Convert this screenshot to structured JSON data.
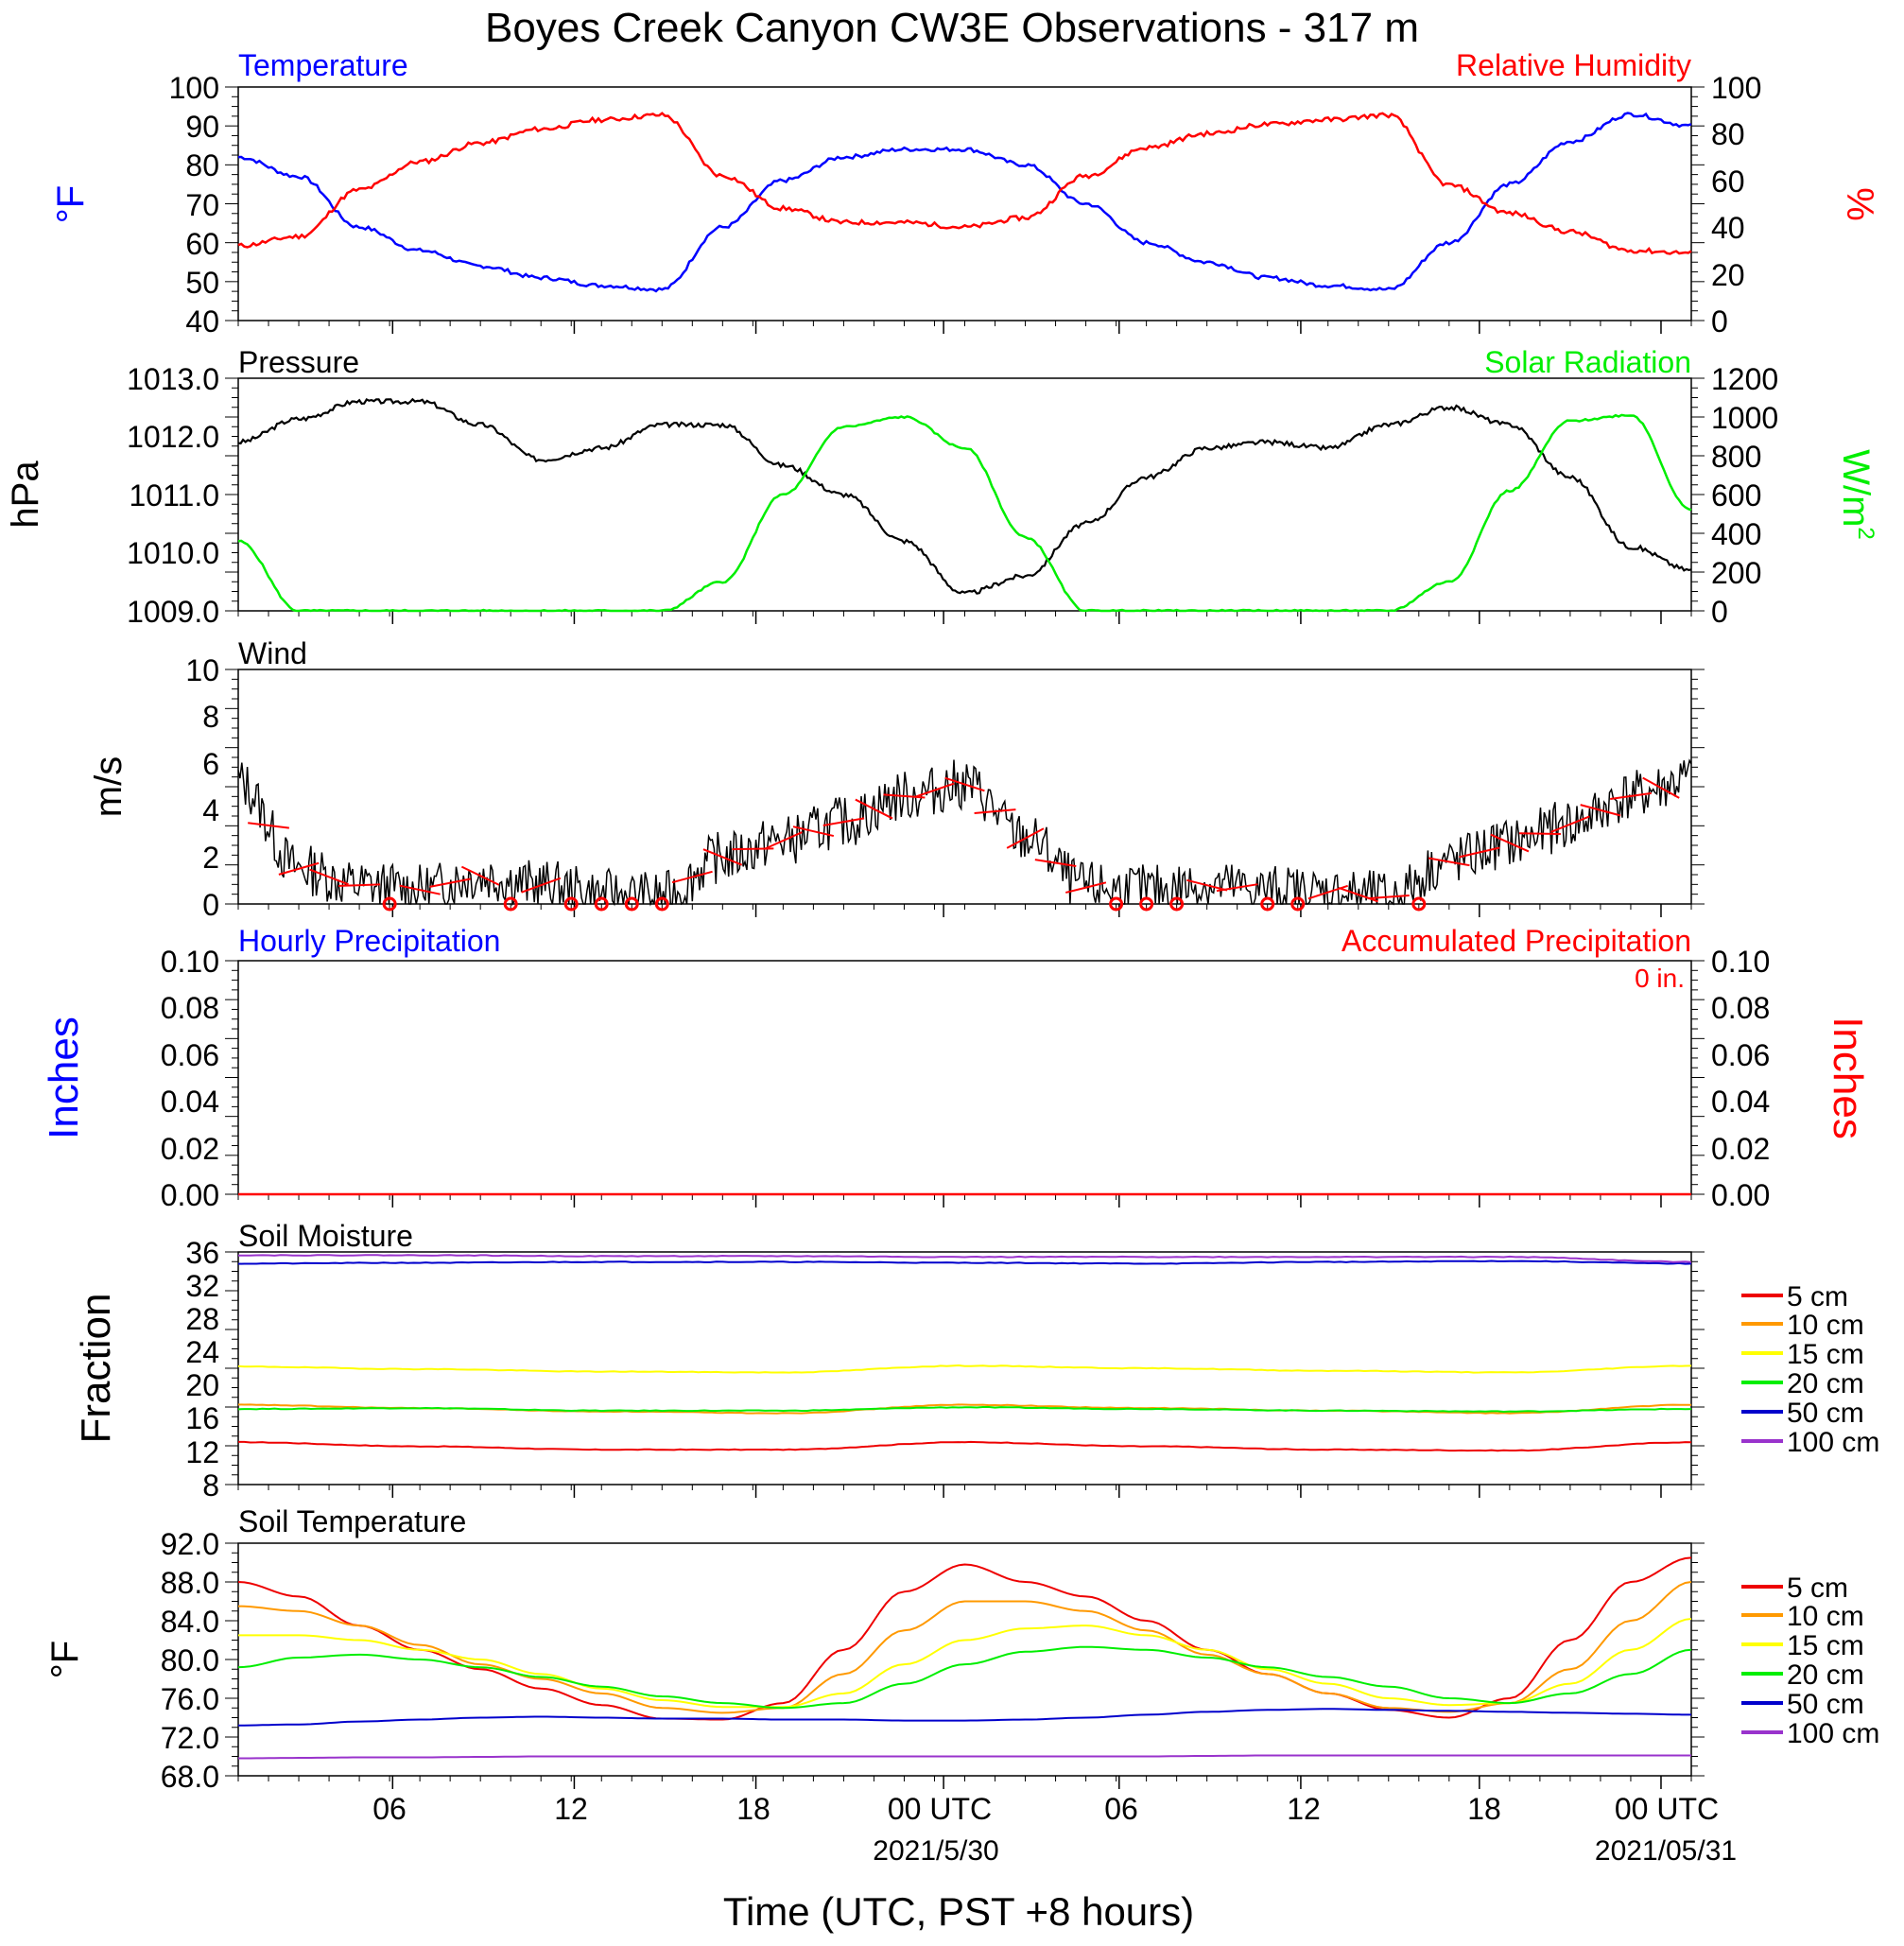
{
  "title": "Boyes Creek Canyon CW3E Observations - 317 m",
  "x_axis": {
    "title": "Time (UTC, PST +8 hours)",
    "tick_labels": [
      "06",
      "12",
      "18",
      "00 UTC",
      "06",
      "12",
      "18",
      "00 UTC"
    ],
    "date_labels": [
      "2021/5/30",
      "2021/05/31"
    ]
  },
  "legend_labels": [
    "5 cm",
    "10 cm",
    "15 cm",
    "20 cm",
    "50 cm",
    "100 cm"
  ],
  "colors": {
    "temperature": "#0000ff",
    "humidity": "#ff0000",
    "pressure": "#000000",
    "solar": "#00ee00",
    "wind": "#000000",
    "barb": "#ff0000",
    "depth_5cm": "#ee0000",
    "depth_10cm": "#ff9900",
    "depth_15cm": "#ffff00",
    "depth_20cm": "#00ee00",
    "depth_50cm": "#0000cc",
    "depth_100cm": "#9933cc"
  },
  "panels": {
    "temp_rh": {
      "left_title": "Temperature",
      "right_title": "Relative Humidity",
      "left_label": "°F",
      "right_label": "%",
      "left_ticks": [
        "100",
        "90",
        "80",
        "70",
        "60",
        "50",
        "40"
      ],
      "right_ticks": [
        "100",
        "80",
        "60",
        "40",
        "20",
        "0"
      ]
    },
    "pressure_solar": {
      "left_title": "Pressure",
      "right_title": "Solar Radiation",
      "left_label": "hPa",
      "right_label": "W/m",
      "right_label_sup": "2",
      "left_ticks": [
        "1013.0",
        "1012.0",
        "1011.0",
        "1010.0",
        "1009.0"
      ],
      "right_ticks": [
        "1200",
        "1000",
        "800",
        "600",
        "400",
        "200",
        "0"
      ]
    },
    "wind": {
      "left_title": "Wind",
      "left_label": "m/s",
      "left_ticks": [
        "10",
        "8",
        "6",
        "4",
        "2",
        "0"
      ]
    },
    "precip": {
      "left_title": "Hourly Precipitation",
      "right_title": "Accumulated Precipitation",
      "annotation": "0 in.",
      "left_label": "Inches",
      "right_label": "Inches",
      "left_ticks": [
        "0.10",
        "0.08",
        "0.06",
        "0.04",
        "0.02",
        "0.00"
      ],
      "right_ticks": [
        "0.10",
        "0.08",
        "0.06",
        "0.04",
        "0.02",
        "0.00"
      ]
    },
    "soil_moisture": {
      "left_title": "Soil Moisture",
      "left_label": "Fraction",
      "left_ticks": [
        "36",
        "32",
        "28",
        "24",
        "20",
        "16",
        "12",
        "8"
      ]
    },
    "soil_temp": {
      "left_title": "Soil Temperature",
      "left_label": "°F",
      "left_ticks": [
        "92.0",
        "88.0",
        "84.0",
        "80.0",
        "76.0",
        "72.0",
        "68.0"
      ]
    }
  },
  "chart_data": [
    {
      "type": "line",
      "xlabel": "Time (UTC, PST +8 hours)",
      "x_hours": [
        0,
        2,
        4,
        6,
        8,
        10,
        12,
        14,
        16,
        18,
        20,
        22,
        24,
        26,
        28,
        30,
        32,
        34,
        36,
        38,
        40,
        42,
        44,
        46,
        48
      ],
      "series": [
        {
          "name": "Temperature",
          "axis": "left",
          "ylim": [
            40,
            100
          ],
          "values": [
            82,
            77,
            64,
            58,
            54,
            51,
            49,
            48,
            64,
            76,
            82,
            84,
            84,
            80,
            70,
            60,
            55,
            51,
            49,
            48,
            60,
            75,
            86,
            93,
            90
          ]
        },
        {
          "name": "Relative Humidity",
          "axis": "right",
          "ylim": [
            0,
            100
          ],
          "values": [
            32,
            36,
            56,
            68,
            76,
            82,
            86,
            88,
            62,
            48,
            42,
            42,
            40,
            44,
            62,
            74,
            80,
            84,
            86,
            88,
            58,
            46,
            38,
            30,
            29
          ]
        }
      ]
    },
    {
      "type": "line",
      "x_hours": [
        0,
        2,
        4,
        6,
        8,
        10,
        12,
        14,
        16,
        18,
        20,
        22,
        24,
        26,
        28,
        30,
        32,
        34,
        36,
        38,
        40,
        42,
        44,
        46,
        48
      ],
      "series": [
        {
          "name": "Pressure",
          "axis": "left",
          "ylim": [
            1009.0,
            1013.0
          ],
          "values": [
            1011.9,
            1012.3,
            1012.6,
            1012.6,
            1012.2,
            1011.6,
            1011.8,
            1012.2,
            1012.2,
            1011.5,
            1011.0,
            1010.2,
            1009.3,
            1009.6,
            1010.5,
            1011.3,
            1011.8,
            1011.9,
            1011.8,
            1012.2,
            1012.5,
            1012.2,
            1011.3,
            1010.1,
            1009.7
          ]
        },
        {
          "name": "Solar Radiation",
          "axis": "right",
          "ylim": [
            0,
            1200
          ],
          "values": [
            360,
            0,
            0,
            0,
            0,
            0,
            0,
            0,
            150,
            600,
            950,
            1000,
            840,
            380,
            0,
            0,
            0,
            0,
            0,
            0,
            150,
            620,
            980,
            1010,
            520
          ]
        }
      ]
    },
    {
      "type": "line",
      "title": "Wind",
      "ylabel": "m/s",
      "ylim": [
        0,
        10
      ],
      "x_hours": [
        0,
        2,
        4,
        6,
        8,
        10,
        12,
        14,
        16,
        18,
        20,
        22,
        24,
        26,
        28,
        30,
        32,
        34,
        36,
        38,
        40,
        42,
        44,
        46,
        48
      ],
      "values": [
        5.2,
        1.5,
        0.8,
        0.6,
        1.2,
        0.8,
        0.4,
        0.3,
        2.0,
        2.7,
        3.5,
        4.6,
        5.1,
        2.8,
        0.7,
        0.6,
        0.8,
        0.6,
        0.5,
        0.3,
        1.8,
        2.6,
        3.4,
        4.6,
        5.3
      ],
      "calm_markers_hours": [
        5,
        9,
        11,
        12,
        13,
        14,
        29,
        30,
        31,
        34,
        35,
        39
      ]
    },
    {
      "type": "line",
      "x_hours": [
        0,
        48
      ],
      "series": [
        {
          "name": "Hourly Precipitation",
          "ylim": [
            0,
            0.1
          ],
          "values": [
            0,
            0
          ]
        },
        {
          "name": "Accumulated Precipitation",
          "ylim": [
            0,
            0.1
          ],
          "values": [
            0,
            0
          ]
        }
      ]
    },
    {
      "type": "line",
      "title": "Soil Moisture",
      "ylabel": "Fraction",
      "ylim": [
        8,
        36
      ],
      "x_hours": [
        0,
        6,
        12,
        18,
        24,
        30,
        36,
        42,
        48
      ],
      "series": [
        {
          "name": "5 cm",
          "values": [
            13.1,
            12.6,
            12.2,
            12.2,
            13.1,
            12.6,
            12.2,
            12.1,
            13.1
          ]
        },
        {
          "name": "10 cm",
          "values": [
            17.6,
            17.2,
            16.8,
            16.6,
            17.6,
            17.2,
            16.9,
            16.6,
            17.6
          ]
        },
        {
          "name": "15 cm",
          "values": [
            22.2,
            21.9,
            21.6,
            21.5,
            22.3,
            22.0,
            21.7,
            21.5,
            22.3
          ]
        },
        {
          "name": "20 cm",
          "values": [
            17.1,
            17.2,
            16.9,
            16.9,
            17.3,
            17.1,
            16.9,
            16.8,
            17.1
          ]
        },
        {
          "name": "50 cm",
          "values": [
            34.6,
            34.7,
            34.8,
            34.8,
            34.7,
            34.6,
            34.8,
            34.9,
            34.6
          ]
        },
        {
          "name": "100 cm",
          "values": [
            35.6,
            35.6,
            35.5,
            35.5,
            35.4,
            35.4,
            35.4,
            35.4,
            34.8
          ]
        }
      ]
    },
    {
      "type": "line",
      "title": "Soil Temperature",
      "ylabel": "°F",
      "ylim": [
        68,
        92
      ],
      "x_hours": [
        0,
        2,
        4,
        6,
        8,
        10,
        12,
        14,
        16,
        18,
        20,
        22,
        24,
        26,
        28,
        30,
        32,
        34,
        36,
        38,
        40,
        42,
        44,
        46,
        48
      ],
      "series": [
        {
          "name": "5 cm",
          "values": [
            88,
            86.5,
            83.5,
            81,
            79,
            77,
            75.3,
            73.9,
            73.8,
            75.5,
            81,
            87,
            89.8,
            88,
            86.5,
            84,
            81,
            78.5,
            76.5,
            74.8,
            74,
            76,
            82,
            88,
            90.5
          ]
        },
        {
          "name": "10 cm",
          "values": [
            85.5,
            85,
            83.5,
            81.5,
            79.5,
            78,
            76.5,
            75,
            74.5,
            75,
            78.5,
            83,
            86,
            86,
            85,
            83,
            80.5,
            78.5,
            76.5,
            75,
            74.6,
            75.5,
            79,
            84,
            88
          ]
        },
        {
          "name": "15 cm",
          "values": [
            82.5,
            82.5,
            82,
            81,
            80,
            78.5,
            77,
            75.8,
            75.1,
            75.1,
            76.5,
            79.5,
            82,
            83.2,
            83.5,
            82.5,
            81,
            79,
            77.5,
            76,
            75.3,
            75.5,
            77.5,
            81,
            84.2
          ]
        },
        {
          "name": "20 cm",
          "values": [
            79.2,
            80.2,
            80.5,
            80,
            79.2,
            78.2,
            77.2,
            76.2,
            75.5,
            75,
            75.5,
            77.5,
            79.5,
            80.8,
            81.3,
            81,
            80.2,
            79.2,
            78.2,
            77.2,
            76,
            75.5,
            76.5,
            78.5,
            81
          ]
        },
        {
          "name": "50 cm",
          "values": [
            73.2,
            73.3,
            73.6,
            73.8,
            74.0,
            74.1,
            74.0,
            73.9,
            73.9,
            73.8,
            73.8,
            73.7,
            73.7,
            73.8,
            74.0,
            74.3,
            74.6,
            74.8,
            74.9,
            74.8,
            74.7,
            74.6,
            74.5,
            74.4,
            74.3
          ]
        },
        {
          "name": "100 cm",
          "values": [
            69.8,
            69.85,
            69.9,
            69.9,
            69.95,
            70.0,
            70.0,
            70.0,
            70.0,
            70.0,
            70.0,
            70.0,
            70.0,
            70.0,
            70.0,
            70.0,
            70.05,
            70.1,
            70.1,
            70.1,
            70.1,
            70.1,
            70.1,
            70.1,
            70.1
          ]
        }
      ]
    }
  ]
}
